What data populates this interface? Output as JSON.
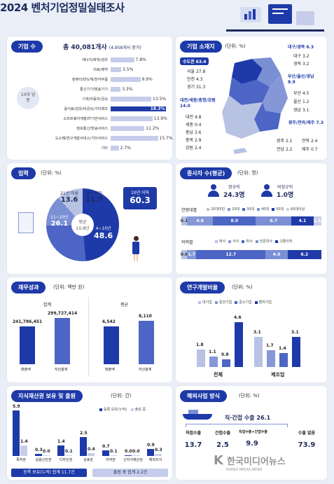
{
  "title": "2024 벤처기업정밀실태조사",
  "companies": {
    "pill": "기업 수",
    "total": "총 40,081개사",
    "increase": "(4,958개사 증가)",
    "group": "10대 업종",
    "rows": [
      {
        "label": "에너지/화학/섬유",
        "value": "7.8%",
        "pct": 7.8
      },
      {
        "label": "의료/제약",
        "value": "3.5%",
        "pct": 3.5
      },
      {
        "label": "컴퓨터/반도체/전자부품",
        "value": "9.9%",
        "pct": 9.9
      },
      {
        "label": "통신기기/방송기기",
        "value": "3.3%",
        "pct": 3.3
      },
      {
        "label": "기계/자동차/금속",
        "value": "13.5%",
        "pct": 13.5
      },
      {
        "label": "음식료/섬유/비금속/기타제조",
        "value": "18.3%",
        "pct": 18.3
      },
      {
        "label": "소프트웨어개발/IT기반서비스",
        "value": "13.9%",
        "pct": 13.9
      },
      {
        "label": "정보통신/방송서비스",
        "value": "11.2%",
        "pct": 11.2
      },
      {
        "label": "도소매/연구개발서비스/기타서비스",
        "value": "15.7%",
        "pct": 15.7
      },
      {
        "label": "기타",
        "value": "2.7%",
        "pct": 2.7
      }
    ]
  },
  "location": {
    "pill": "기업 소재지",
    "unit": "(단위: %)",
    "capital": "수도권 63.4",
    "seoul": "서울 27.8",
    "incheon": "인천 4.3",
    "gyeonggi": "경기 31.3",
    "chungcheong": "대전/세종/충청/강원 14.0",
    "daejeon": "대전 4.8",
    "sejong": "세종 0.4",
    "chungnam": "충남 3.6",
    "chungbuk": "충북 2.9",
    "gangwon": "강원 2.4",
    "daegu_gb": "대구/경북 6.3",
    "daegu": "대구 3.2",
    "gyeongbuk": "경북 3.2",
    "busan_gn": "부산/울산/경남 8.9",
    "busan": "부산 4.5",
    "ulsan": "울산 1.2",
    "gyeongnam": "경남 3.1",
    "honam": "광주/전라/제주 7.3",
    "gwangju": "광주 2.1",
    "jeonbuk": "전북 2.4",
    "jeonnam": "전남 2.2",
    "jeju": "제주 0.7"
  },
  "age": {
    "pill": "업력",
    "unit": "(단위: %)",
    "avg_label": "평균",
    "avg_value": "10.8년",
    "seg1_label": "21년 이상",
    "seg1_value": "13.6",
    "seg2_label": "3년 이하",
    "seg2_value": "11.7",
    "seg3_label": "11~20년",
    "seg3_value": "26.1",
    "seg4_label": "4~10년",
    "seg4_value": "48.6",
    "callout_label": "10년 이하",
    "callout_value": "60.3"
  },
  "employees": {
    "pill": "종사자 수(평균)",
    "unit": "(단위: 명)",
    "regular_label": "정규직",
    "regular_value": "24.3명",
    "nonreg_label": "비정규직",
    "nonreg_value": "1.0명",
    "age_title": "연령대별",
    "age_legend": [
      "20대미만",
      "20대",
      "30대",
      "40대",
      "50대",
      "60대이상"
    ],
    "age_values": [
      "0.1",
      "4.9",
      "8.0",
      "6.7",
      "4.1",
      "1.5"
    ],
    "edu_title": "학력별",
    "edu_legend": [
      "박사",
      "석사",
      "학사",
      "전문학사",
      "고졸이하"
    ],
    "edu_values": [
      "0.6",
      "1.7",
      "12.7",
      "4.0",
      "6.2"
    ],
    "colors": [
      "#b8c2e3",
      "#8597d6",
      "#4d65c4",
      "#7a8fd4",
      "#1e3aa8",
      "#c9d0ea"
    ]
  },
  "finance": {
    "pill": "재무성과",
    "unit": "(단위: 백만 원)",
    "total_title": "합계",
    "avg_title": "평균",
    "t_sales": "241,786,451",
    "t_assets": "299,727,414",
    "a_sales": "6,542",
    "a_assets": "8,110",
    "sales_label": "매출액",
    "assets_label": "자산총계"
  },
  "rnd": {
    "pill": "연구개발비율",
    "unit": "(단위: %)",
    "legend": [
      "대기업",
      "중견기업",
      "중소기업",
      "벤처기업"
    ],
    "all_label": "전체",
    "mfg_label": "제조업",
    "all_values": [
      "1.8",
      "1.1",
      "0.8",
      "4.6"
    ],
    "mfg_values": [
      "3.1",
      "1.7",
      "1.4",
      "3.1"
    ],
    "all_nums": [
      1.8,
      1.1,
      0.8,
      4.6
    ],
    "mfg_nums": [
      3.1,
      1.7,
      1.4,
      3.1
    ]
  },
  "ip": {
    "pill": "지식재산권 보유 및 출원",
    "unit": "(단위: 건)",
    "legend_owned": "등록 보유(누적)",
    "legend_filed": "출원 중",
    "items": [
      {
        "label": "특허권",
        "owned": "5.9",
        "filed": "1.4",
        "o": 5.9,
        "f": 1.4
      },
      {
        "label": "실용신안권",
        "owned": "0.3",
        "filed": "0.0",
        "o": 0.3,
        "f": 0.0
      },
      {
        "label": "디자인권",
        "owned": "1.4",
        "filed": "0.1",
        "o": 1.4,
        "f": 0.1
      },
      {
        "label": "상표권",
        "owned": "2.5",
        "filed": "0.4",
        "o": 2.5,
        "f": 0.4
      },
      {
        "label": "저작권",
        "owned": "0.7",
        "filed": "0.1",
        "o": 0.7,
        "f": 0.1
      },
      {
        "label": "신지식재산권",
        "owned": "0.0",
        "filed": "0.0",
        "o": 0.0,
        "f": 0.0
      },
      {
        "label": "해외지식",
        "owned": "0.9",
        "filed": "0.3",
        "o": 0.9,
        "f": 0.3
      }
    ],
    "sum_owned": "등록 보유(누적) 합계 11.7건",
    "sum_filed": "출원 중 합계 2.2건"
  },
  "overseas": {
    "pill": "해외사업 방식",
    "unit": "(단위: %)",
    "header": "직·간접 수출 26.1",
    "items": [
      {
        "label": "직접수출",
        "value": "13.7"
      },
      {
        "label": "간접수출",
        "value": "2.5"
      },
      {
        "label": "직접수출+간접수출",
        "value": "9.9"
      },
      {
        "label": "수출 없음",
        "value": "73.9"
      }
    ]
  },
  "watermark": "한국미디어뉴스",
  "watermark_sub": "KOREA MEDIA NEWS"
}
